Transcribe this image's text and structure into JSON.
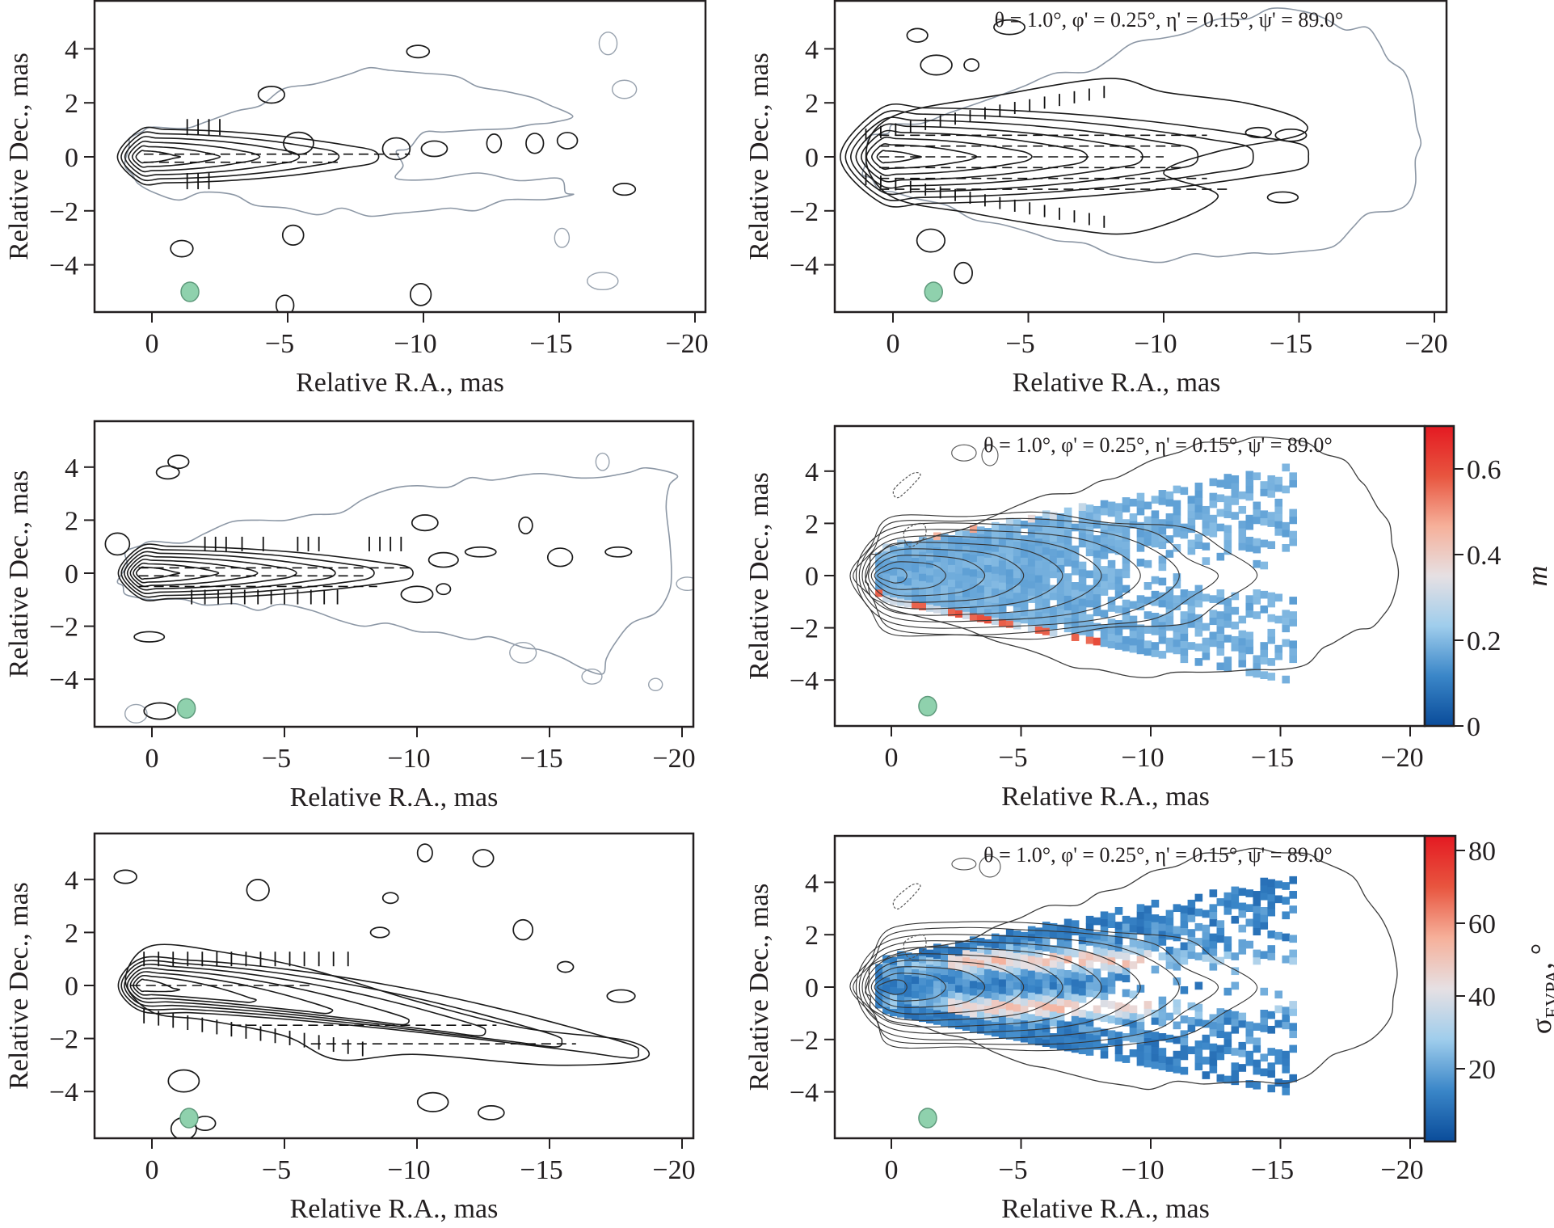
{
  "figure": {
    "param_caption": "θ = 1.0°, φ' = 0.25°, η' = 0.15°, ψ' = 89.0°",
    "xlabel": "Relative R.A., mas",
    "ylabel": "Relative Dec., mas",
    "xticks": [
      "0",
      "−5",
      "−10",
      "−15",
      "−20"
    ],
    "yticks": [
      "4",
      "2",
      "0",
      "−2",
      "−4"
    ]
  },
  "chart_data": [
    {
      "id": "top-left",
      "type": "contour",
      "title": "",
      "xlabel": "Relative R.A., mas",
      "ylabel": "Relative Dec., mas",
      "xlim": [
        2.1,
        -20.5
      ],
      "ylim": [
        -5.7,
        5.8
      ],
      "xticks": [
        0,
        -5,
        -10,
        -15,
        -20
      ],
      "yticks": [
        4,
        2,
        0,
        -2,
        -4
      ],
      "beam": {
        "x": -1.4,
        "y": -5.0,
        "color": "#8fd1ad"
      },
      "outer_contour": [
        [
          1.0,
          -0.3
        ],
        [
          0.8,
          0.7
        ],
        [
          0,
          1.1
        ],
        [
          -2,
          1.3
        ],
        [
          -4,
          1.9
        ],
        [
          -6,
          2.7
        ],
        [
          -8,
          3.3
        ],
        [
          -10,
          3.1
        ],
        [
          -12,
          2.6
        ],
        [
          -14,
          2.2
        ],
        [
          -15.5,
          1.5
        ],
        [
          -14,
          1.2
        ],
        [
          -12,
          1.0
        ],
        [
          -10,
          0.9
        ],
        [
          -9,
          0.2
        ],
        [
          -9,
          -0.8
        ],
        [
          -12,
          -0.6
        ],
        [
          -15,
          -0.8
        ],
        [
          -15.5,
          -1.4
        ],
        [
          -13,
          -1.6
        ],
        [
          -11,
          -1.9
        ],
        [
          -9,
          -2.1
        ],
        [
          -7,
          -1.9
        ],
        [
          -5,
          -1.9
        ],
        [
          -3,
          -1.4
        ],
        [
          -1,
          -1.6
        ],
        [
          0.5,
          -1.0
        ]
      ],
      "jet_core_contours": 6,
      "jet_extent": -8.5,
      "evpa_ticks": {
        "upper": [
          -1.0,
          -1.4,
          -1.8,
          -2.2
        ],
        "lower": [
          -1.0,
          -1.4,
          -1.8,
          -2.2
        ],
        "dash_extent": -9.5
      },
      "knots": [
        [
          -5.4,
          0.5
        ],
        [
          -9,
          0.3
        ],
        [
          -10.4,
          0.3
        ],
        [
          -12.6,
          0.5
        ],
        [
          -14.1,
          0.5
        ],
        [
          -15.3,
          0.6
        ],
        [
          -17.4,
          -1.2
        ],
        [
          -4.4,
          2.3
        ],
        [
          -9.8,
          3.9
        ],
        [
          -5.2,
          -2.9
        ],
        [
          -1.1,
          -3.4
        ],
        [
          -9.9,
          -5.1
        ],
        [
          -4.9,
          -5.5
        ]
      ],
      "grey_islands": [
        [
          -16.8,
          4.2
        ],
        [
          -17.4,
          2.5
        ],
        [
          -16.6,
          -4.6
        ],
        [
          -15.1,
          -3.0
        ]
      ]
    },
    {
      "id": "top-right",
      "type": "contour",
      "xlabel": "Relative R.A., mas",
      "ylabel": "Relative Dec., mas",
      "xlim": [
        2.1,
        -20.5
      ],
      "ylim": [
        -5.7,
        5.8
      ],
      "annotation": "θ = 1.0°, φ' = 0.25°, η' = 0.15°, ψ' = 89.0°",
      "beam": {
        "x": -1.5,
        "y": -5.0,
        "color": "#8fd1ad"
      },
      "outer_contour": [
        [
          1.0,
          -0.2
        ],
        [
          0.8,
          0.8
        ],
        [
          0,
          1.2
        ],
        [
          -2,
          1.6
        ],
        [
          -4,
          2.3
        ],
        [
          -6,
          3.1
        ],
        [
          -8,
          3.6
        ],
        [
          -10,
          4.4
        ],
        [
          -12,
          5.1
        ],
        [
          -14,
          5.5
        ],
        [
          -16,
          5.1
        ],
        [
          -17.5,
          4.8
        ],
        [
          -18.3,
          3.6
        ],
        [
          -19.2,
          2.2
        ],
        [
          -19.5,
          0.5
        ],
        [
          -19.3,
          -1.0
        ],
        [
          -18.5,
          -2.0
        ],
        [
          -17,
          -2.6
        ],
        [
          -16,
          -3.4
        ],
        [
          -14,
          -3.6
        ],
        [
          -12,
          -3.7
        ],
        [
          -10,
          -3.9
        ],
        [
          -8,
          -3.6
        ],
        [
          -6,
          -3.1
        ],
        [
          -4,
          -2.5
        ],
        [
          -2,
          -1.8
        ],
        [
          0,
          -1.3
        ],
        [
          0.8,
          -0.8
        ]
      ],
      "inner_envelope": {
        "tip": -12.5,
        "halfwidth_mid": 1.8
      },
      "jet_core_contours": 8,
      "jet_extent": -15.5,
      "knots": [
        [
          -0.9,
          4.5
        ],
        [
          -2.9,
          3.4
        ],
        [
          -1.6,
          3.4
        ],
        [
          -4.3,
          4.8
        ],
        [
          -13.5,
          0.9
        ],
        [
          -14.7,
          0.8
        ],
        [
          -14.4,
          -1.5
        ],
        [
          -1.4,
          -3.1
        ],
        [
          -2.6,
          -4.3
        ]
      ]
    },
    {
      "id": "middle-left",
      "type": "contour",
      "xlabel": "Relative R.A., mas",
      "ylabel": "Relative Dec., mas",
      "xlim": [
        2.2,
        -20.5
      ],
      "ylim": [
        -5.6,
        5.9
      ],
      "beam": {
        "x": -1.3,
        "y": -5.1,
        "color": "#8fd1ad"
      },
      "outer_contour": [
        [
          1.3,
          -0.3
        ],
        [
          1.0,
          0.8
        ],
        [
          0,
          1.2
        ],
        [
          -2,
          1.5
        ],
        [
          -4,
          2.0
        ],
        [
          -6,
          2.2
        ],
        [
          -8,
          2.8
        ],
        [
          -10,
          3.3
        ],
        [
          -12,
          3.6
        ],
        [
          -14,
          3.7
        ],
        [
          -16,
          3.6
        ],
        [
          -18,
          3.8
        ],
        [
          -19.8,
          3.7
        ],
        [
          -19.4,
          2.5
        ],
        [
          -19.6,
          0.0
        ],
        [
          -19,
          -1.5
        ],
        [
          -17.5,
          -2.6
        ],
        [
          -17,
          -3.8
        ],
        [
          -15.5,
          -3.2
        ],
        [
          -14,
          -2.8
        ],
        [
          -12,
          -2.5
        ],
        [
          -10,
          -2.2
        ],
        [
          -8,
          -2.0
        ],
        [
          -6,
          -1.4
        ],
        [
          -4,
          -1.4
        ],
        [
          -2,
          -1.2
        ],
        [
          0,
          -1.0
        ],
        [
          1,
          -0.8
        ]
      ],
      "jet_core_contours": 7,
      "jet_extent": -10.0,
      "knots": [
        [
          1.3,
          1.1
        ],
        [
          -11.0,
          0.5
        ],
        [
          -10.0,
          -0.8
        ],
        [
          -11.0,
          -0.6
        ],
        [
          -12.4,
          0.8
        ],
        [
          -15.4,
          0.6
        ],
        [
          -17.6,
          0.8
        ],
        [
          -14.1,
          1.8
        ],
        [
          -10.3,
          1.9
        ],
        [
          0.1,
          -2.4
        ],
        [
          -1.0,
          4.2
        ],
        [
          -0.6,
          3.8
        ],
        [
          -0.3,
          -5.2
        ]
      ],
      "grey_islands": [
        [
          -17.0,
          4.2
        ],
        [
          -16.6,
          -3.9
        ],
        [
          -14.0,
          -3.0
        ],
        [
          -19.0,
          -4.2
        ],
        [
          -20.2,
          -0.4
        ],
        [
          0.6,
          -5.3
        ]
      ]
    },
    {
      "id": "middle-right",
      "type": "heatmap",
      "xlabel": "Relative R.A., mas",
      "ylabel": "Relative Dec., mas",
      "xlim": [
        2.2,
        -20.5
      ],
      "ylim": [
        -5.7,
        5.7
      ],
      "annotation": "θ = 1.0°, φ' = 0.25°, η' = 0.15°, ψ' = 89.0°",
      "colorbar": {
        "label": "m",
        "range": [
          0,
          0.7
        ],
        "ticks": [
          0,
          0.2,
          0.4,
          0.6
        ],
        "tick_labels": [
          "0",
          "0.2",
          "0.4",
          "0.6"
        ],
        "colormap": "RdBu_r",
        "colors": [
          "#0a4c9a",
          "#3a86c8",
          "#9fcdec",
          "#e6e0e3",
          "#f6b09a",
          "#e8553f",
          "#e41a22"
        ]
      },
      "beam": {
        "x": -1.4,
        "y": -5.0,
        "color": "#8fd1ad"
      },
      "field_value_typical": 0.18,
      "edge_value": 0.6,
      "polarized_extent": -15.5,
      "contour_levels": 10
    },
    {
      "id": "bottom-left",
      "type": "contour",
      "xlabel": "Relative R.A., mas",
      "ylabel": "Relative Dec., mas",
      "xlim": [
        2.2,
        -20.5
      ],
      "ylim": [
        -5.6,
        5.9
      ],
      "beam": {
        "x": -1.4,
        "y": -5.0,
        "color": "#8fd1ad"
      },
      "jet_core_contours": 7,
      "jet_extent": -18.5,
      "jet_bend_dec": -2.5,
      "knots": [
        [
          -10.3,
          5.0
        ],
        [
          -12.5,
          4.8
        ],
        [
          -9.0,
          3.3
        ],
        [
          -4.0,
          3.6
        ],
        [
          1.0,
          4.1
        ],
        [
          -8.6,
          2.0
        ],
        [
          -14.0,
          2.1
        ],
        [
          -15.6,
          0.7
        ],
        [
          -17.7,
          -0.4
        ],
        [
          -10.6,
          -4.4
        ],
        [
          -12.8,
          -4.8
        ],
        [
          -1.2,
          -3.6
        ],
        [
          -1.2,
          -5.4
        ],
        [
          -2.0,
          -5.2
        ]
      ]
    },
    {
      "id": "bottom-right",
      "type": "heatmap",
      "xlabel": "Relative R.A., mas",
      "ylabel": "Relative Dec., mas",
      "xlim": [
        2.2,
        -20.5
      ],
      "ylim": [
        -5.7,
        5.7
      ],
      "annotation": "θ = 1.0°, φ' = 0.25°, η' = 0.15°, ψ' = 89.0°",
      "colorbar": {
        "label": "σEVPA, °",
        "label_main": "σ",
        "label_sub": "EVPA",
        "label_suffix": ", °",
        "range": [
          0,
          84
        ],
        "ticks": [
          20,
          40,
          60,
          80
        ],
        "tick_labels": [
          "20",
          "40",
          "60",
          "80"
        ],
        "colormap": "RdBu_r",
        "colors": [
          "#0a4c9a",
          "#3a86c8",
          "#9fcdec",
          "#e6e0e3",
          "#f6b09a",
          "#e8553f",
          "#e41a22"
        ]
      },
      "beam": {
        "x": -1.4,
        "y": -5.0,
        "color": "#8fd1ad"
      },
      "field_value_typical": 15,
      "ridge_value": 50,
      "polarized_extent": -15.5,
      "contour_levels": 10
    }
  ]
}
